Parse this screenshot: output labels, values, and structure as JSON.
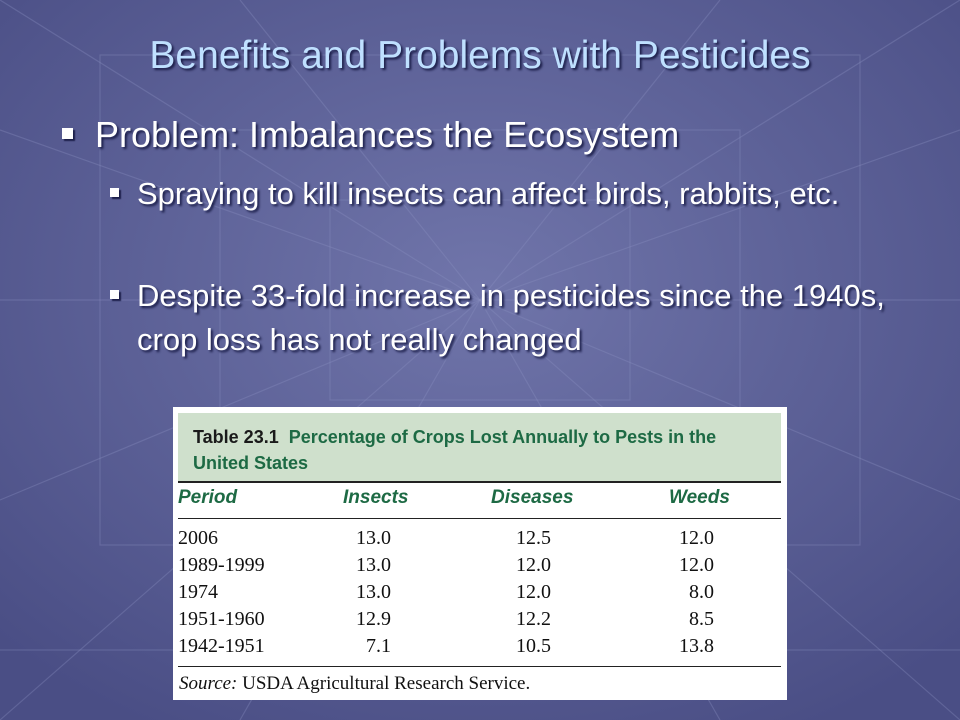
{
  "slide": {
    "title": "Benefits and Problems with Pesticides",
    "bullet_main": "Problem: Imbalances the Ecosystem",
    "sub_bullets": [
      "Spraying to kill insects can affect birds, rabbits, etc.",
      "Despite 33-fold increase in pesticides since the 1940s, crop loss has not really changed"
    ]
  },
  "table": {
    "number": "Table 23.1",
    "caption": "Percentage of Crops Lost Annually to Pests in the United States",
    "columns": [
      "Period",
      "Insects",
      "Diseases",
      "Weeds"
    ],
    "rows": [
      [
        "2006",
        "13.0",
        "12.5",
        "12.0"
      ],
      [
        "1989-1999",
        "13.0",
        "12.0",
        "12.0"
      ],
      [
        "1974",
        "13.0",
        "12.0",
        "8.0"
      ],
      [
        "1951-1960",
        "12.9",
        "12.2",
        "8.5"
      ],
      [
        "1942-1951",
        "7.1",
        "10.5",
        "13.8"
      ]
    ],
    "source_label": "Source:",
    "source_text": " USDA Agricultural Research Service."
  },
  "colors": {
    "background": "#5a5f98",
    "title": "#bfe0ff",
    "table_header_bg": "#cfe0cc",
    "table_header_text": "#1d6a44"
  }
}
